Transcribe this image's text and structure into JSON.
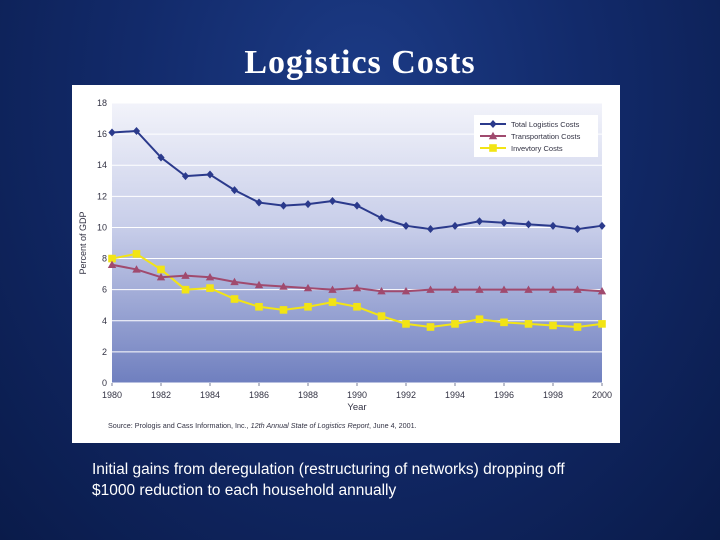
{
  "slide": {
    "title": "Logistics Costs",
    "caption_lines": [
      "Initial gains from deregulation (restructuring of networks) dropping off",
      "$1000 reduction to each household annually"
    ]
  },
  "chart_data": {
    "type": "line",
    "title": "",
    "xlabel": "Year",
    "ylabel": "Percent of GDP",
    "xlim": [
      1980,
      2000
    ],
    "ylim": [
      0,
      18
    ],
    "xticks": [
      "1980",
      "1982",
      "1984",
      "1986",
      "1988",
      "1990",
      "1992",
      "1994",
      "1996",
      "1998",
      "2000"
    ],
    "yticks": [
      "0",
      "2",
      "4",
      "6",
      "8",
      "10",
      "12",
      "14",
      "16",
      "18"
    ],
    "grid": "horizontal",
    "legend_position": "top-right",
    "x": [
      1980,
      1981,
      1982,
      1983,
      1984,
      1985,
      1986,
      1987,
      1988,
      1989,
      1990,
      1991,
      1992,
      1993,
      1994,
      1995,
      1996,
      1997,
      1998,
      1999,
      2000
    ],
    "series": [
      {
        "name": "Total Logistics Costs",
        "color": "#2b3a8c",
        "marker": "diamond",
        "values": [
          16.1,
          16.2,
          14.5,
          13.3,
          13.4,
          12.4,
          11.6,
          11.4,
          11.5,
          11.7,
          11.4,
          10.6,
          10.1,
          9.9,
          10.1,
          10.4,
          10.3,
          10.2,
          10.1,
          9.9,
          10.1
        ]
      },
      {
        "name": "Transportation Costs",
        "color": "#a04a6e",
        "marker": "triangle",
        "values": [
          7.6,
          7.3,
          6.8,
          6.9,
          6.8,
          6.5,
          6.3,
          6.2,
          6.1,
          6.0,
          6.1,
          5.9,
          5.9,
          6.0,
          6.0,
          6.0,
          6.0,
          6.0,
          6.0,
          6.0,
          5.9
        ]
      },
      {
        "name": "Invevtory Costs",
        "color": "#f2e415",
        "marker": "square",
        "values": [
          8.0,
          8.3,
          7.3,
          6.0,
          6.1,
          5.4,
          4.9,
          4.7,
          4.9,
          5.2,
          4.9,
          4.3,
          3.8,
          3.6,
          3.8,
          4.1,
          3.9,
          3.8,
          3.7,
          3.6,
          3.8
        ]
      }
    ],
    "source_prefix": "Source: Prologis and Cass Information, Inc., ",
    "source_italic": "12th Annual State of Logistics Report",
    "source_suffix": ", June 4, 2001.",
    "colors": {
      "plot_top": "#f2f3fa",
      "plot_bottom": "#6f7fbf",
      "axis_text": "#333344"
    }
  }
}
